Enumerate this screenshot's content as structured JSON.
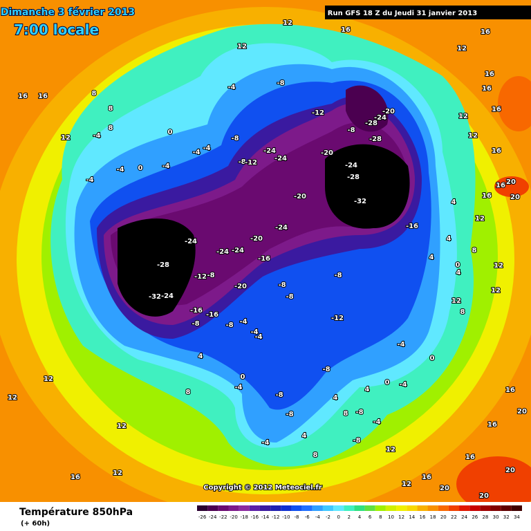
{
  "header": {
    "date": "Dimanche 3 février 2013",
    "time": "7:00 locale",
    "run": "Run GFS 18 Z du Jeudi 31 janvier 2013"
  },
  "copyright": "Copyright © 2012 Meteociel.fr",
  "footer": {
    "title": "Température 850hPa",
    "lead": "(+ 60h)"
  },
  "legend": {
    "values": [
      -26,
      -24,
      -22,
      -20,
      -18,
      -16,
      -14,
      -12,
      -10,
      -8,
      -6,
      -4,
      -2,
      0,
      2,
      4,
      6,
      8,
      10,
      12,
      14,
      16,
      18,
      20,
      22,
      24,
      26,
      28,
      30,
      32,
      34
    ],
    "colors": [
      "#2a0030",
      "#4b0050",
      "#6a0a70",
      "#7d1a8a",
      "#8c2aa0",
      "#5c1fa8",
      "#3a1aa0",
      "#2020b0",
      "#1030d0",
      "#1050f0",
      "#2070ff",
      "#30a0ff",
      "#40c8ff",
      "#60e8ff",
      "#40f0c0",
      "#30e080",
      "#60e040",
      "#a0f000",
      "#d0f000",
      "#f0f000",
      "#f8d800",
      "#f8b000",
      "#f89000",
      "#f86800",
      "#f04000",
      "#e01800",
      "#c80000",
      "#a00000",
      "#800000",
      "#600000",
      "#400000"
    ]
  },
  "contour_labels": [
    -8,
    -4,
    -12,
    -8,
    -20,
    -28,
    -24,
    -28,
    -24,
    -24,
    -20,
    -24,
    -28,
    -32,
    -20,
    -24,
    -16,
    -24,
    -20,
    -28,
    -24,
    -24,
    -16,
    -12,
    -8,
    -20,
    -8,
    -8,
    -8,
    -32,
    -24,
    -16,
    -16,
    -8,
    -4,
    -8,
    -12,
    -4,
    -4,
    -8,
    -4,
    0,
    -8,
    -8,
    -4,
    0,
    -4,
    -8,
    -8,
    -4,
    4,
    8,
    0,
    -4,
    12,
    12,
    12,
    12,
    16,
    -8,
    -8,
    -12,
    -4,
    -4,
    -4,
    -4,
    0,
    0,
    -4,
    -4,
    12,
    16,
    16,
    8,
    8,
    8,
    12,
    12,
    16,
    12,
    16,
    16,
    16,
    12,
    16,
    12,
    16,
    16,
    20,
    20,
    16,
    12,
    4,
    4,
    12,
    8,
    12,
    12,
    8,
    4,
    4,
    0,
    16,
    20,
    16,
    16,
    20,
    20,
    20,
    16,
    12,
    12,
    8,
    4,
    8,
    4,
    4
  ]
}
